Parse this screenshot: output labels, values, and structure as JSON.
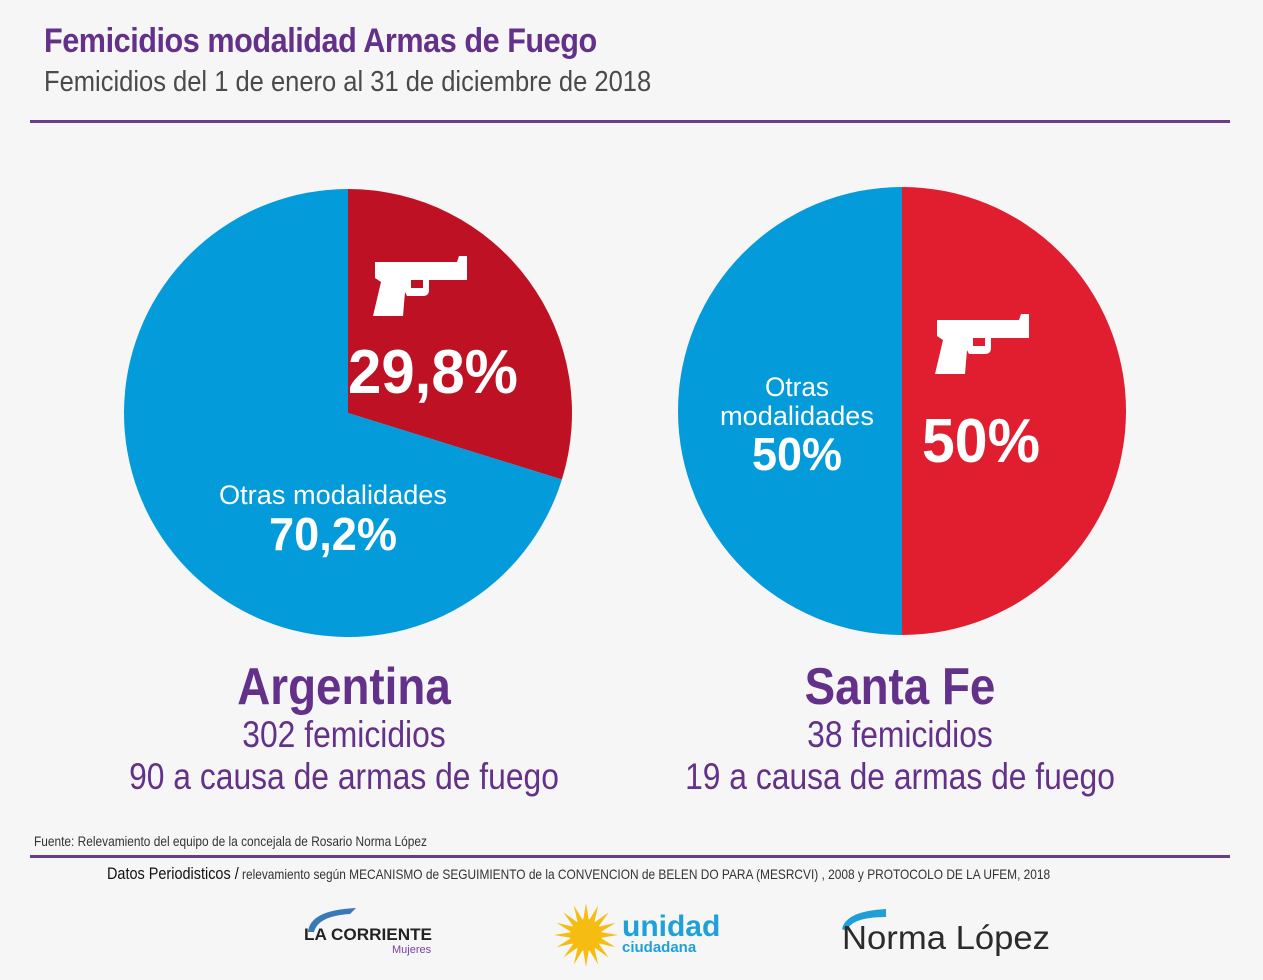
{
  "header": {
    "title": "Femicidios modalidad Armas de Fuego",
    "subtitle": "Femicidios  del 1 de enero al 31 de diciembre de 2018"
  },
  "colors": {
    "purple": "#63308a",
    "blue": "#039bd9",
    "red_argentina": "#bf1124",
    "red_santafe": "#e11d30"
  },
  "chart_data": [
    {
      "type": "pie",
      "title": "Argentina",
      "slices": [
        {
          "name": "Armas de fuego",
          "value": 29.8,
          "label": "29,8%",
          "icon": "pistol-icon"
        },
        {
          "name": "Otras modalidades",
          "value": 70.2,
          "label_top": "Otras modalidades",
          "label": "70,2%"
        }
      ]
    },
    {
      "type": "pie",
      "title": "Santa Fe",
      "slices": [
        {
          "name": "Armas de fuego",
          "value": 50,
          "label": "50%",
          "icon": "pistol-icon"
        },
        {
          "name": "Otras modalidades",
          "value": 50,
          "label_top_1": "Otras",
          "label_top_2": "modalidades",
          "label": "50%"
        }
      ]
    }
  ],
  "regions": [
    {
      "name": "Argentina",
      "total": "302 femicidios",
      "firearms": "90 a causa de armas de fuego"
    },
    {
      "name": "Santa Fe",
      "total": "38 femicidios",
      "firearms": "19 a causa de armas de fuego"
    }
  ],
  "footer": {
    "source": "Fuente: Relevamiento del equipo de la concejala de Rosario Norma López",
    "datos_strong": "Datos Periodisticos /",
    "datos_rest": " relevamiento según MECANISMO de SEGUIMIENTO de la CONVENCION de BELEN DO PARA (MESRCVI) , 2008 y PROTOCOLO DE LA UFEM, 2018"
  },
  "logos": {
    "la_corriente": "LA CORRIENTE",
    "la_corriente_sub": "Mujeres",
    "unidad": "unidad",
    "unidad_sub": "ciudadana",
    "norma": "Norma López"
  }
}
